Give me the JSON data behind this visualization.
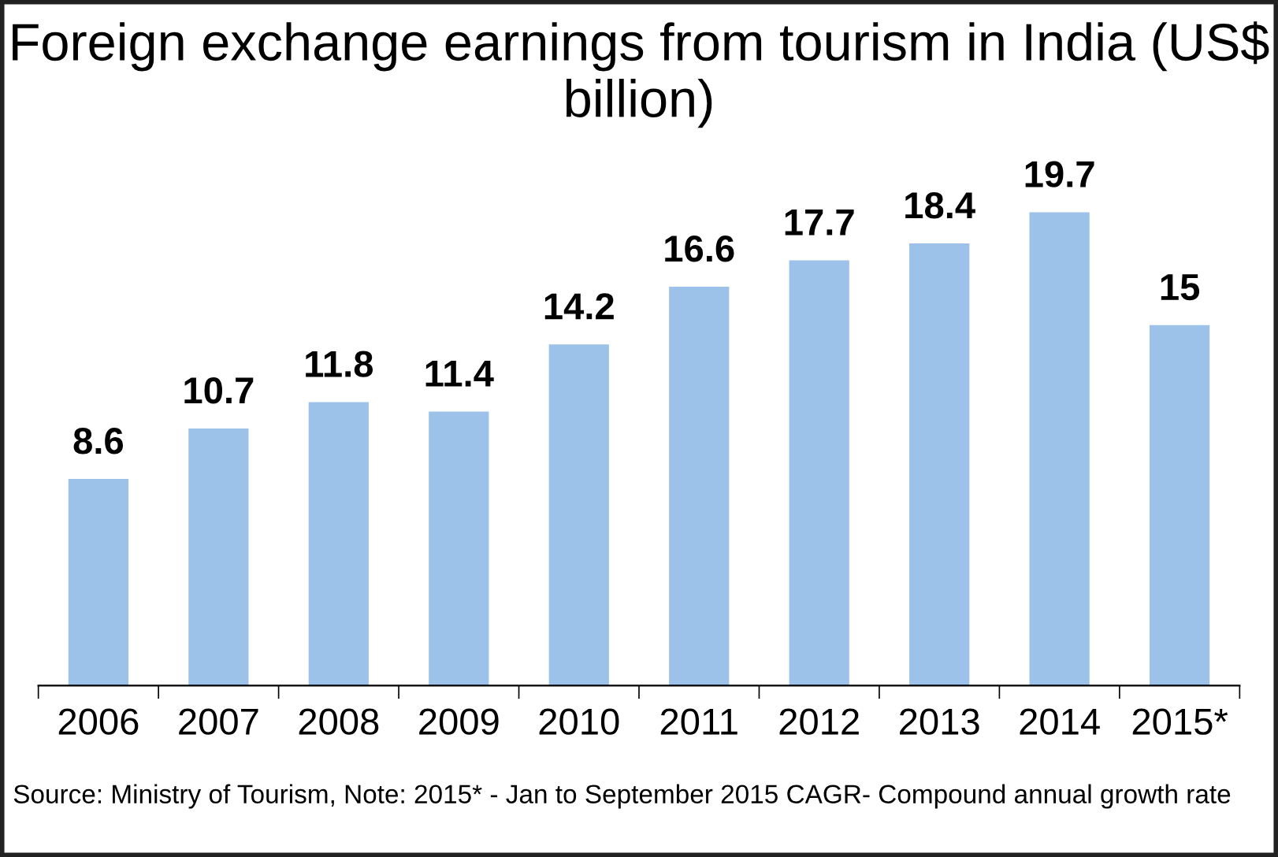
{
  "chart_data": {
    "type": "bar",
    "title": "Foreign exchange earnings from tourism in India (US$ billion)",
    "categories": [
      "2006",
      "2007",
      "2008",
      "2009",
      "2010",
      "2011",
      "2012",
      "2013",
      "2014",
      "2015*"
    ],
    "values": [
      8.6,
      10.7,
      11.8,
      11.4,
      14.2,
      16.6,
      17.7,
      18.4,
      19.7,
      15
    ],
    "color": "#9cc2ea",
    "data_labels": true,
    "grid": false,
    "legend": false,
    "annotations": [
      "Source: Ministry of Tourism, Note: 2015* - Jan to September 2015 CAGR- Compound annual growth rate"
    ]
  }
}
